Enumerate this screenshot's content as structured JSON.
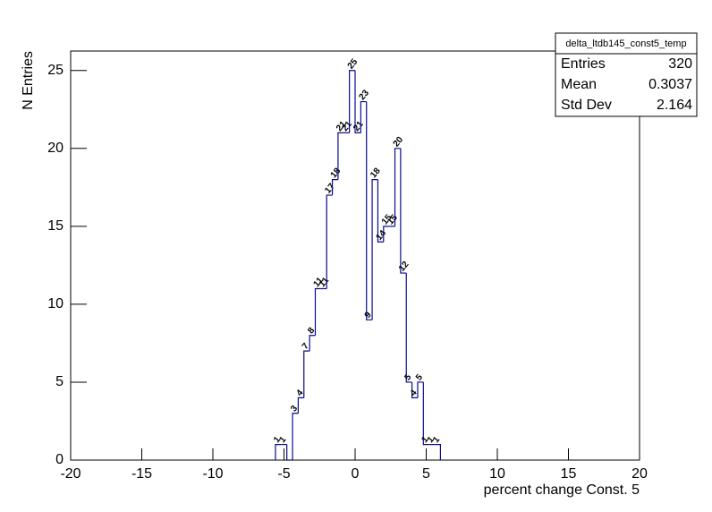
{
  "chart_data": {
    "type": "histogram",
    "xlabel": "percent change Const. 5",
    "ylabel": "N Entries",
    "bins": [
      -5.6,
      -5.2,
      -4.8,
      -4.4,
      -4,
      -3.6,
      -3.2,
      -2.8,
      -2.4,
      -2,
      -1.6,
      -1.2,
      -0.8,
      -0.4,
      0,
      0.4,
      0.8,
      1.2,
      1.6,
      2,
      2.4,
      2.8,
      3.2,
      3.6,
      4,
      4.4,
      4.8,
      5.2,
      5.6,
      6
    ],
    "values": [
      1,
      1,
      0,
      3,
      4,
      7,
      8,
      11,
      11,
      17,
      18,
      21,
      21,
      25,
      21,
      23,
      9,
      18,
      14,
      15,
      15,
      20,
      12,
      5,
      4,
      5,
      1,
      1,
      1
    ],
    "color": "#0a0a8c",
    "xlim": [
      -20,
      20
    ],
    "xticks": [
      -20,
      -15,
      -10,
      -5,
      0,
      5,
      10,
      15,
      20
    ],
    "ylim": [
      0,
      26.25
    ],
    "yticks": [
      0,
      5,
      10,
      15,
      20,
      25
    ],
    "stats": {
      "title": "delta_ltdb145_const5_temp",
      "rows": [
        {
          "label": "Entries",
          "value": 320
        },
        {
          "label": "Mean",
          "value": 0.3037
        },
        {
          "label": "Std Dev",
          "value": 2.164
        }
      ]
    }
  }
}
